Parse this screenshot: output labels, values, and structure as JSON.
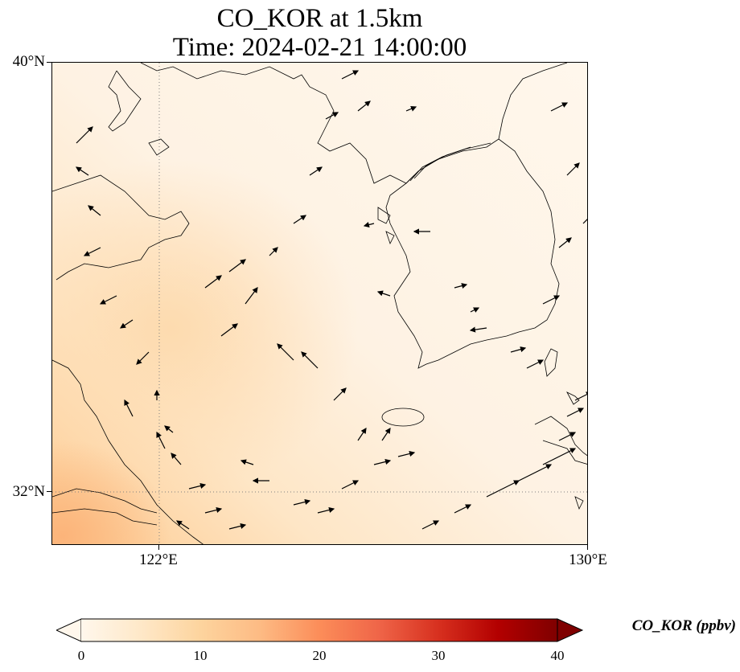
{
  "title": {
    "line1": "CO_KOR at 1.5km",
    "line2": "Time: 2024-02-21 14:00:00"
  },
  "map": {
    "variable": "CO_KOR",
    "level": "1.5km",
    "lon_range": [
      120,
      130
    ],
    "lat_range": [
      31,
      40
    ],
    "lat_ticks": [
      {
        "value": 40,
        "label": "40°N"
      },
      {
        "value": 32,
        "label": "32°N"
      }
    ],
    "lon_ticks": [
      {
        "value": 122,
        "label": "122°E"
      },
      {
        "value": 130,
        "label": "130°E"
      }
    ],
    "gridlines": "dotted",
    "coastline_color": "#000000",
    "wind_vectors": true,
    "colormap": "OrRd"
  },
  "colorbar": {
    "label": "CO_KOR (ppbv)",
    "min": 0,
    "max": 40,
    "extend": "both",
    "ticks": [
      "0",
      "10",
      "20",
      "30",
      "40"
    ],
    "colors": [
      "#fff7ec",
      "#fee8c8",
      "#fdd49e",
      "#fdbb84",
      "#fc8d59",
      "#ef6548",
      "#d7301f",
      "#b30000",
      "#7f0000"
    ]
  }
}
